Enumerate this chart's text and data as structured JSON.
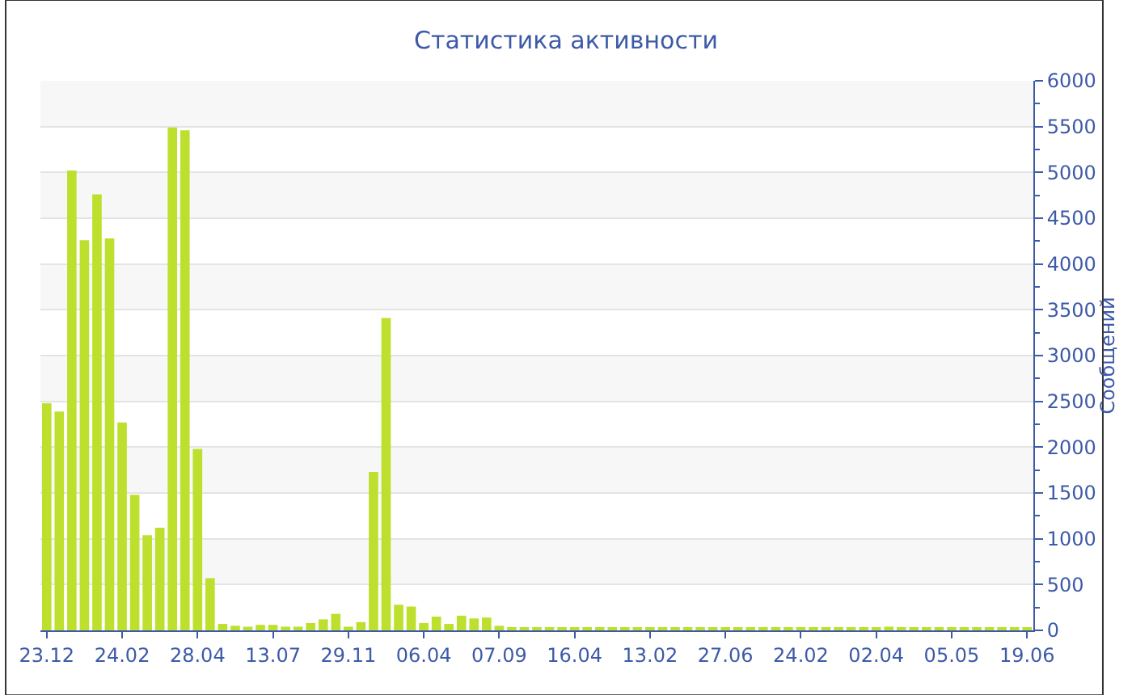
{
  "chart_data": {
    "type": "bar",
    "title": "Статистика активности",
    "ylabel": "Сообщений",
    "categories": [
      "23.12",
      null,
      null,
      null,
      null,
      null,
      "24.02",
      null,
      null,
      null,
      null,
      null,
      "28.04",
      null,
      null,
      null,
      null,
      null,
      "13.07",
      null,
      null,
      null,
      null,
      null,
      "29.11",
      null,
      null,
      null,
      null,
      null,
      "06.04",
      null,
      null,
      null,
      null,
      null,
      "07.09",
      null,
      null,
      null,
      null,
      null,
      "16.04",
      null,
      null,
      null,
      null,
      null,
      "13.02",
      null,
      null,
      null,
      null,
      null,
      "27.06",
      null,
      null,
      null,
      null,
      null,
      "24.02",
      null,
      null,
      null,
      null,
      null,
      "02.04",
      null,
      null,
      null,
      null,
      null,
      "05.05",
      null,
      null,
      null,
      null,
      null,
      "19.06"
    ],
    "values": [
      2480,
      2390,
      5020,
      4260,
      4760,
      4280,
      2270,
      1480,
      1040,
      1120,
      5490,
      5460,
      1980,
      570,
      70,
      50,
      40,
      60,
      60,
      40,
      40,
      80,
      120,
      180,
      40,
      90,
      1730,
      3410,
      280,
      260,
      80,
      150,
      70,
      160,
      130,
      140,
      50,
      30,
      20,
      20,
      20,
      20,
      20,
      20,
      20,
      20,
      20,
      20,
      20,
      20,
      20,
      20,
      20,
      20,
      20,
      20,
      20,
      20,
      20,
      20,
      20,
      20,
      20,
      20,
      20,
      20,
      20,
      40,
      20,
      20,
      20,
      20,
      20,
      20,
      20,
      20,
      20,
      20,
      20
    ],
    "color": "#bde02e",
    "ylim": [
      0,
      6000
    ],
    "yticks": [
      0,
      500,
      1000,
      1500,
      2000,
      2500,
      3000,
      3500,
      4000,
      4500,
      5000,
      5500,
      6000
    ],
    "grid": "y"
  }
}
